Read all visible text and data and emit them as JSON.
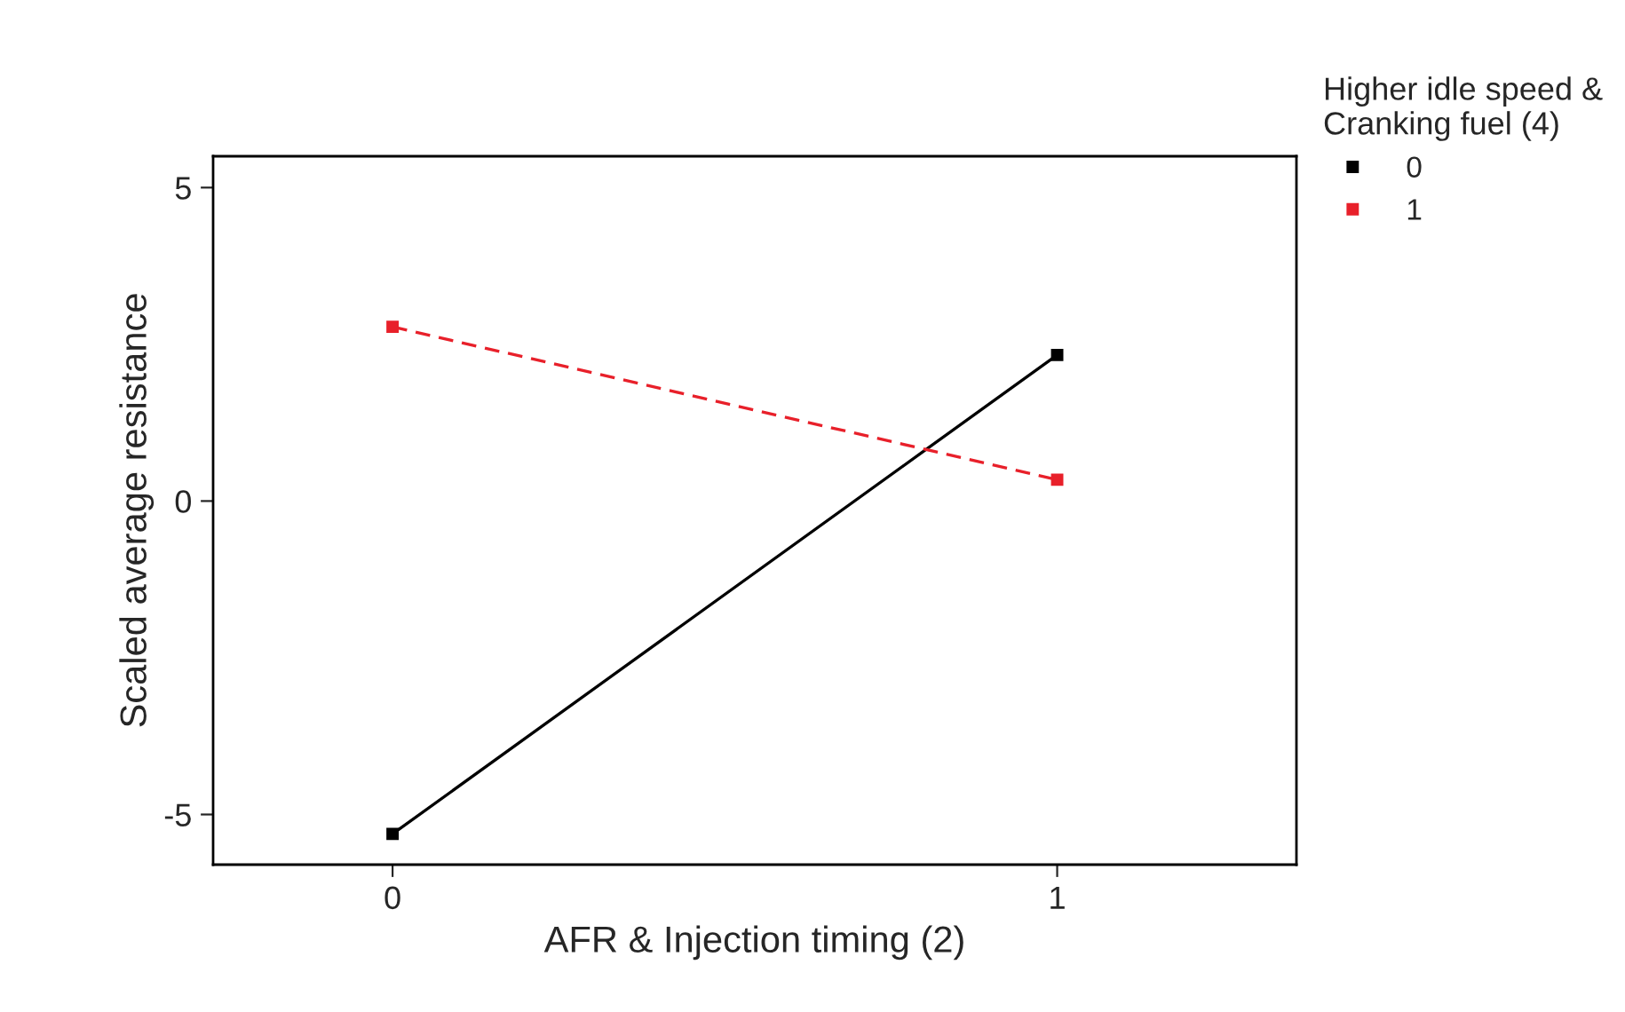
{
  "chart_data": {
    "type": "line",
    "xlabel": "AFR & Injection timing (2)",
    "ylabel": "Scaled average resistance",
    "legend_title": "Higher idle speed &\nCranking fuel (4)",
    "x": [
      0,
      1
    ],
    "series": [
      {
        "name": "0",
        "color": "#000000",
        "values": [
          -5.31,
          2.33
        ],
        "line_style": "solid"
      },
      {
        "name": "1",
        "color": "#e8202a",
        "values": [
          2.78,
          0.34
        ],
        "line_style": "dashed"
      }
    ],
    "xlim": [
      -0.27,
      1.36
    ],
    "xticks": [
      0,
      1
    ],
    "ylim": [
      -5.8,
      5.5
    ],
    "yticks": [
      {
        "value": 5,
        "label": "5"
      },
      {
        "value": 0,
        "label": "0"
      },
      {
        "value": -5,
        "label": "-5"
      }
    ],
    "marker": "square",
    "grid": false,
    "legend": "top right"
  }
}
